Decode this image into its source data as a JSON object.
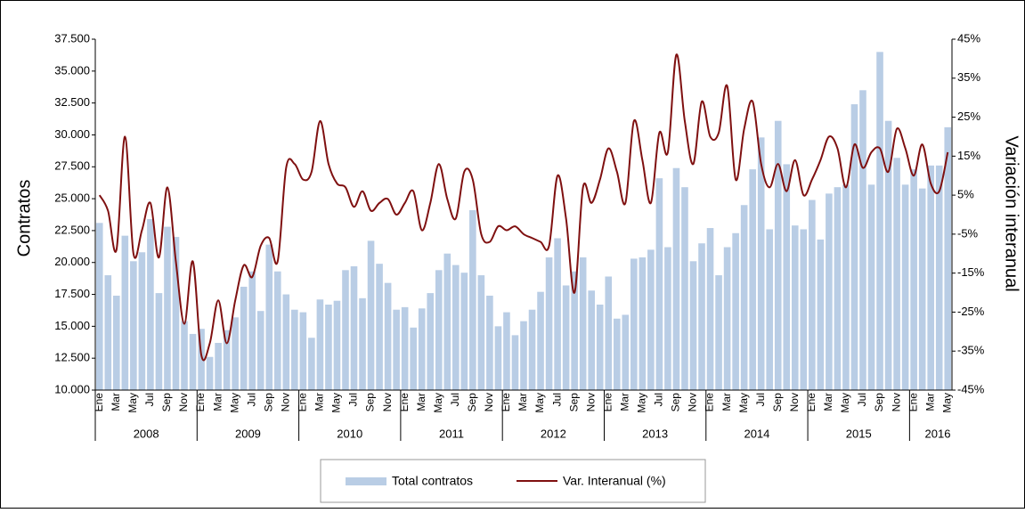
{
  "chart_data": {
    "type": "bar-line",
    "y_label": "Contratos",
    "y2_label": "Variación interanual",
    "categories": [
      "Ene",
      null,
      "Mar",
      null,
      "May",
      null,
      "Jul",
      null,
      "Sep",
      null,
      "Nov",
      null,
      "Ene",
      null,
      "Mar",
      null,
      "May",
      null,
      "Jul",
      null,
      "Sep",
      null,
      "Nov",
      null,
      "Ene",
      null,
      "Mar",
      null,
      "May",
      null,
      "Jul",
      null,
      "Sep",
      null,
      "Nov",
      null,
      "Ene",
      null,
      "Mar",
      null,
      "May",
      null,
      "Jul",
      null,
      "Sep",
      null,
      "Nov",
      null,
      "Ene",
      null,
      "Mar",
      null,
      "May",
      null,
      "Jul",
      null,
      "Sep",
      null,
      "Nov",
      null,
      "Ene",
      null,
      "Mar",
      null,
      "May",
      null,
      "Jul",
      null,
      "Sep",
      null,
      "Nov",
      null,
      "Ene",
      null,
      "Mar",
      null,
      "May",
      null,
      "Jul",
      null,
      "Sep",
      null,
      "Nov",
      null,
      "Ene",
      null,
      "Mar",
      null,
      "May",
      null,
      "Jul",
      null,
      "Sep",
      null,
      "Nov",
      null,
      "Ene",
      null,
      "Mar",
      null,
      "May"
    ],
    "x_groups": [
      "2008",
      "2009",
      "2010",
      "2011",
      "2012",
      "2013",
      "2014",
      "2015",
      "2016"
    ],
    "series": [
      {
        "name": "Total contratos",
        "kind": "bar",
        "color": "#b9cde5",
        "values": [
          23100,
          19000,
          17400,
          22100,
          20100,
          20800,
          23400,
          17600,
          22800,
          22000,
          15400,
          14400,
          14800,
          12600,
          13700,
          14700,
          15700,
          18100,
          19300,
          16200,
          21400,
          19300,
          17500,
          16300,
          16100,
          14100,
          17100,
          16700,
          17000,
          19400,
          19700,
          17200,
          21700,
          19900,
          18400,
          16300,
          16500,
          14900,
          16400,
          17600,
          19400,
          20700,
          19800,
          19200,
          24100,
          19000,
          17400,
          15000,
          16100,
          14300,
          15400,
          16300,
          17700,
          20400,
          21900,
          18200,
          19300,
          20400,
          17800,
          16700,
          18900,
          15600,
          15900,
          20300,
          20400,
          21000,
          26600,
          21200,
          27400,
          25900,
          20100,
          21500,
          22700,
          19000,
          21200,
          22300,
          24500,
          27300,
          29800,
          22600,
          31100,
          27700,
          22900,
          22600,
          24900,
          21800,
          25400,
          25900,
          26100,
          32400,
          33500,
          26100,
          36500,
          31100,
          28200,
          26100,
          27300,
          25800,
          27600,
          27600,
          30600
        ]
      },
      {
        "name": "Var. Interanual (%)",
        "kind": "line",
        "axis": "y2",
        "color": "#7f1010",
        "values": [
          5,
          1,
          -9,
          20,
          -10,
          -4,
          3,
          -11,
          7,
          -12,
          -28,
          -12,
          -36,
          -33,
          -22,
          -33,
          -22,
          -13,
          -16,
          -8,
          -6,
          -12,
          12,
          13,
          9,
          11,
          24,
          13,
          8,
          7,
          2,
          6,
          1,
          3,
          4,
          0,
          3,
          6,
          -4,
          3,
          13,
          4,
          -1,
          11,
          9,
          -5,
          -7,
          -3,
          -4,
          -3,
          -5,
          -6,
          -7,
          -8,
          10,
          -1,
          -20,
          7,
          3,
          9,
          17,
          11,
          3,
          24,
          14,
          3,
          21,
          16,
          41,
          24,
          13,
          29,
          20,
          21,
          33,
          9,
          22,
          29,
          13,
          7,
          13,
          6,
          14,
          5,
          9,
          14,
          20,
          17,
          7,
          18,
          12,
          16,
          17,
          11,
          22,
          17,
          10,
          18,
          8,
          6,
          16
        ]
      }
    ],
    "ylim": [
      10000,
      37500
    ],
    "yticks": [
      {
        "value": 10000,
        "label": "10.000"
      },
      {
        "value": 12500,
        "label": "12.500"
      },
      {
        "value": 15000,
        "label": "15.000"
      },
      {
        "value": 17500,
        "label": "17.500"
      },
      {
        "value": 20000,
        "label": "20.000"
      },
      {
        "value": 22500,
        "label": "22.500"
      },
      {
        "value": 25000,
        "label": "25.000"
      },
      {
        "value": 27500,
        "label": "27.500"
      },
      {
        "value": 30000,
        "label": "30.000"
      },
      {
        "value": 32500,
        "label": "32.500"
      },
      {
        "value": 35000,
        "label": "35.000"
      },
      {
        "value": 37500,
        "label": "37.500"
      }
    ],
    "y2lim": [
      -45,
      45
    ],
    "y2ticks": [
      {
        "value": -45,
        "label": "-45%"
      },
      {
        "value": -35,
        "label": "-35%"
      },
      {
        "value": -25,
        "label": "-25%"
      },
      {
        "value": -15,
        "label": "-15%"
      },
      {
        "value": -5,
        "label": "-5%"
      },
      {
        "value": 5,
        "label": "5%"
      },
      {
        "value": 15,
        "label": "15%"
      },
      {
        "value": 25,
        "label": "25%"
      },
      {
        "value": 35,
        "label": "35%"
      },
      {
        "value": 45,
        "label": "45%"
      }
    ],
    "legend": "bottom"
  }
}
